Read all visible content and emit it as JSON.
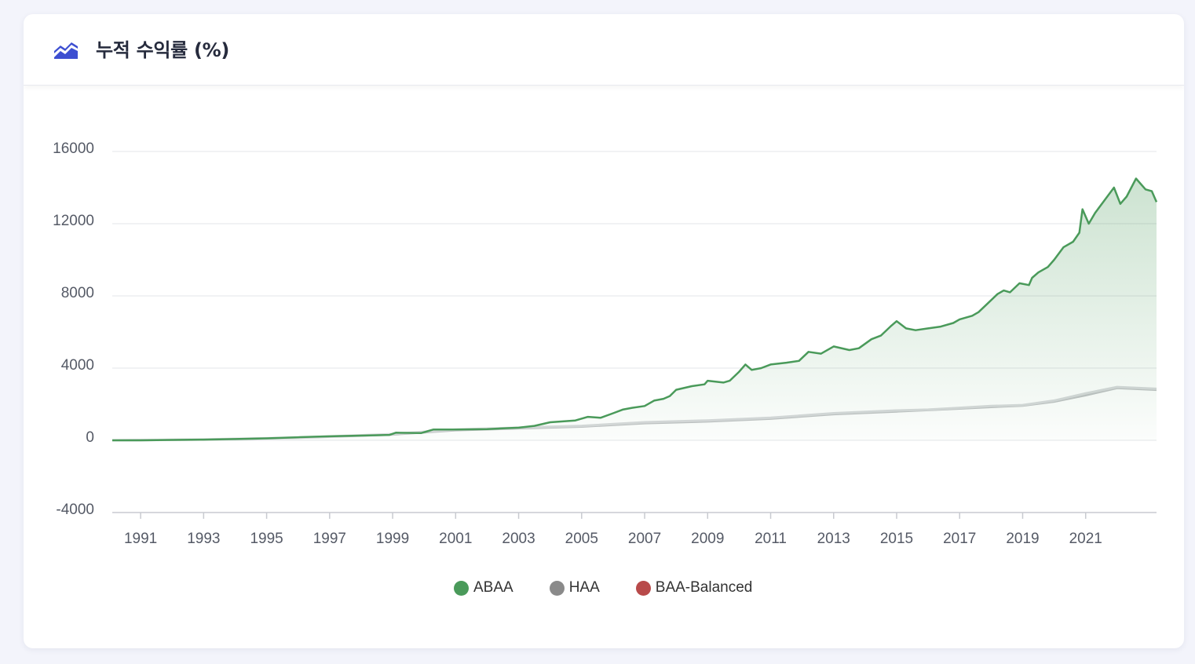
{
  "header": {
    "title": "누적 수익률 (%)",
    "icon": "area-chart-icon",
    "icon_color": "#3d4fd1"
  },
  "chart_data": {
    "type": "line",
    "title": "누적 수익률 (%)",
    "xlabel": "",
    "ylabel": "",
    "xlim": [
      1990.1,
      2023.25
    ],
    "ylim": [
      -4000,
      16000
    ],
    "y_ticks": [
      "16000",
      "12000",
      "8000",
      "4000",
      "0",
      "-4000"
    ],
    "x_ticks": [
      "1991",
      "1993",
      "1995",
      "1997",
      "1999",
      "2001",
      "2003",
      "2005",
      "2007",
      "2009",
      "2011",
      "2013",
      "2015",
      "2017",
      "2019",
      "2021"
    ],
    "grid": true,
    "legend_position": "bottom-center",
    "series": [
      {
        "name": "ABAA",
        "color": "#4a9a5a",
        "area": true,
        "x": [
          1990.1,
          1991,
          1992,
          1993,
          1994,
          1995,
          1996,
          1997,
          1998,
          1998.9,
          1999.1,
          1999.9,
          2000.1,
          2000.3,
          2001,
          2002,
          2003,
          2003.5,
          2004,
          2004.4,
          2004.8,
          2005.2,
          2005.6,
          2006,
          2006.3,
          2006.6,
          2007,
          2007.3,
          2007.6,
          2007.8,
          2008,
          2008.5,
          2008.9,
          2009,
          2009.5,
          2009.7,
          2010,
          2010.2,
          2010.4,
          2010.7,
          2011,
          2011.5,
          2011.9,
          2012.2,
          2012.6,
          2013,
          2013.5,
          2013.8,
          2014.2,
          2014.5,
          2014.8,
          2015,
          2015.3,
          2015.6,
          2016,
          2016.4,
          2016.8,
          2017,
          2017.4,
          2017.6,
          2017.9,
          2018.2,
          2018.4,
          2018.6,
          2018.9,
          2019.2,
          2019.3,
          2019.5,
          2019.8,
          2020,
          2020.3,
          2020.6,
          2020.8,
          2020.9,
          2021.1,
          2021.3,
          2021.6,
          2021.9,
          2022.1,
          2022.3,
          2022.6,
          2022.9,
          2023.1,
          2023.25
        ],
        "values": [
          0,
          0,
          20,
          40,
          70,
          110,
          170,
          220,
          260,
          300,
          420,
          400,
          500,
          600,
          600,
          620,
          700,
          800,
          1000,
          1050,
          1100,
          1300,
          1250,
          1500,
          1700,
          1800,
          1900,
          2200,
          2300,
          2450,
          2800,
          3000,
          3100,
          3300,
          3200,
          3300,
          3800,
          4200,
          3900,
          4000,
          4200,
          4300,
          4400,
          4900,
          4800,
          5200,
          5000,
          5100,
          5600,
          5800,
          6300,
          6600,
          6200,
          6100,
          6200,
          6300,
          6500,
          6700,
          6900,
          7100,
          7600,
          8100,
          8300,
          8200,
          8700,
          8600,
          9000,
          9300,
          9600,
          10000,
          10700,
          11000,
          11500,
          12800,
          12000,
          12600,
          13300,
          14000,
          13100,
          13500,
          14500,
          13900,
          13800,
          13200
        ]
      },
      {
        "name": "HAA",
        "color": "#d7d9db",
        "area": false,
        "x": [
          1990.1,
          1993,
          1996,
          1999,
          2001,
          2003,
          2005,
          2007,
          2009,
          2011,
          2013,
          2015,
          2016,
          2017,
          2018,
          2019,
          2020,
          2021,
          2022,
          2023.25
        ],
        "values": [
          0,
          50,
          150,
          350,
          600,
          700,
          800,
          1000,
          1100,
          1250,
          1500,
          1650,
          1700,
          1800,
          1900,
          1950,
          2200,
          2600,
          2950,
          2850
        ]
      },
      {
        "name": "BAA-Balanced",
        "color": "#c0c2c4",
        "area": false,
        "x": [
          1990.1,
          1993,
          1996,
          1999,
          2001,
          2003,
          2005,
          2007,
          2009,
          2011,
          2013,
          2015,
          2016,
          2017,
          2018,
          2019,
          2020,
          2021,
          2022,
          2023.25
        ],
        "values": [
          0,
          40,
          140,
          320,
          560,
          660,
          760,
          950,
          1050,
          1200,
          1450,
          1600,
          1680,
          1760,
          1850,
          1920,
          2150,
          2500,
          2900,
          2800
        ]
      }
    ]
  },
  "legend": [
    {
      "label": "ABAA",
      "color": "#4a9a5a"
    },
    {
      "label": "HAA",
      "color": "#8a8a8a"
    },
    {
      "label": "BAA-Balanced",
      "color": "#b84a4a"
    }
  ]
}
